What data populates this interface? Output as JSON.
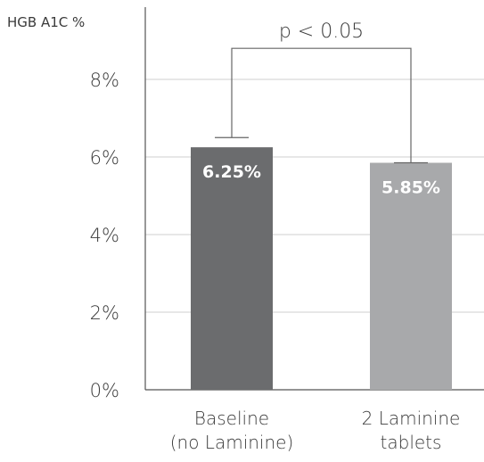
{
  "chart_data": {
    "type": "bar",
    "ylabel": "HGB A1C %",
    "xlabel": "",
    "ylim": [
      0,
      10
    ],
    "yticks": [
      0,
      2,
      4,
      6,
      8
    ],
    "ytick_labels": [
      "0%",
      "2%",
      "4%",
      "6%",
      "8%"
    ],
    "categories": [
      [
        "Baseline",
        "(no Laminine)"
      ],
      [
        "2 Laminine",
        "tablets"
      ]
    ],
    "values": [
      6.25,
      5.85
    ],
    "value_labels": [
      "6.25%",
      "5.85%"
    ],
    "error_upper": [
      6.5,
      5.85
    ],
    "bar_colors": [
      "#6b6c6e",
      "#a8a9ab"
    ],
    "significance": {
      "label": "p < 0.05",
      "level": 8.8
    },
    "grid": true
  }
}
